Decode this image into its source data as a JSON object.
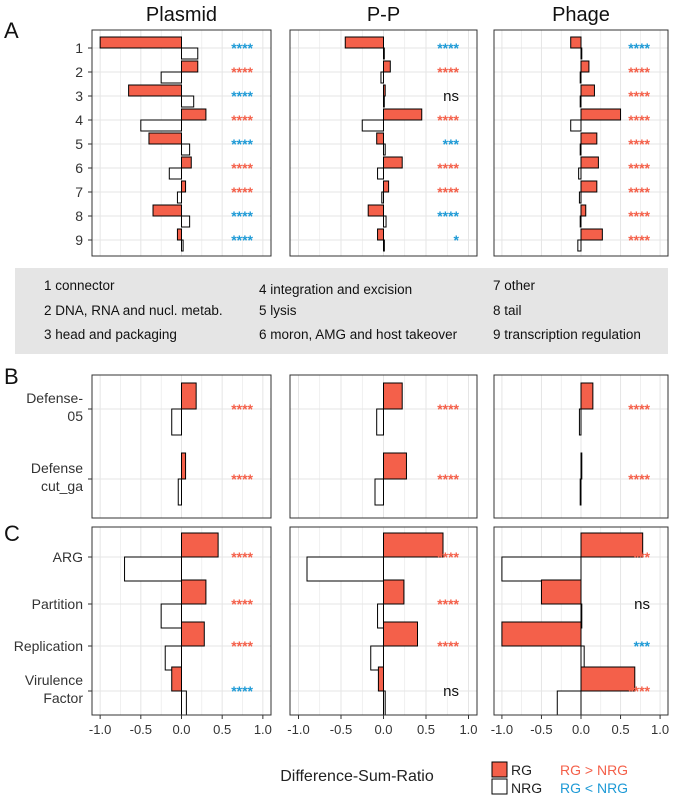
{
  "figure": {
    "column_titles": [
      "Plasmid",
      "P-P",
      "Phage"
    ],
    "panel_letters": [
      "A",
      "B",
      "C"
    ],
    "x_axis_label": "Difference-Sum-Ratio",
    "x_ticks": [
      "-1.0",
      "-0.5",
      "0.0",
      "0.5",
      "1.0"
    ],
    "legend": {
      "rg_label": "RG",
      "nrg_label": "NRG",
      "rg_gt_nrg": "RG > NRG",
      "rg_lt_nrg": "RG < NRG"
    },
    "category_legend": [
      "1 connector",
      "2 DNA, RNA and nucl. metab.",
      "3 head and packaging",
      "4 integration and excision",
      "5 lysis",
      "6 moron, AMG and host takeover",
      "7 other",
      "8 tail",
      "9 transcription regulation"
    ],
    "colors": {
      "rg_fill": "#F4604A",
      "nrg_fill": "#FFFFFF",
      "up_star": "#F4604A",
      "down_star": "#1E9AD6",
      "grid": "#E5E5E5",
      "legend_box": "#E5E5E5"
    }
  },
  "chart_data": [
    {
      "panel": "A",
      "type": "bar",
      "orientation": "horizontal",
      "categories": [
        "1",
        "2",
        "3",
        "4",
        "5",
        "6",
        "7",
        "8",
        "9"
      ],
      "xlim": [
        -1.1,
        1.1
      ],
      "columns": [
        {
          "name": "Plasmid",
          "series": [
            {
              "name": "RG",
              "values": [
                -1.0,
                0.2,
                -0.65,
                0.3,
                -0.4,
                0.12,
                0.05,
                -0.35,
                -0.05
              ]
            },
            {
              "name": "NRG",
              "values": [
                0.2,
                -0.25,
                0.15,
                -0.5,
                0.1,
                -0.15,
                -0.05,
                0.1,
                0.02
              ]
            }
          ],
          "significance": [
            "****",
            "****",
            "****",
            "****",
            "****",
            "****",
            "****",
            "****",
            "****"
          ],
          "direction": [
            "down",
            "up",
            "down",
            "up",
            "down",
            "up",
            "up",
            "down",
            "down"
          ]
        },
        {
          "name": "P-P",
          "series": [
            {
              "name": "RG",
              "values": [
                -0.45,
                0.08,
                0.02,
                0.45,
                -0.08,
                0.22,
                0.06,
                -0.18,
                -0.07
              ]
            },
            {
              "name": "NRG",
              "values": [
                0.0,
                -0.03,
                0.0,
                -0.25,
                0.02,
                -0.07,
                -0.02,
                0.03,
                0.01
              ]
            }
          ],
          "significance": [
            "****",
            "****",
            "ns",
            "****",
            "***",
            "****",
            "****",
            "****",
            "*"
          ],
          "direction": [
            "down",
            "up",
            "ns",
            "up",
            "down",
            "up",
            "up",
            "down",
            "down"
          ]
        },
        {
          "name": "Phage",
          "series": [
            {
              "name": "RG",
              "values": [
                -0.13,
                0.1,
                0.17,
                0.5,
                0.2,
                0.22,
                0.2,
                0.06,
                0.27
              ]
            },
            {
              "name": "NRG",
              "values": [
                0.01,
                -0.01,
                -0.01,
                -0.13,
                -0.01,
                -0.03,
                -0.02,
                -0.01,
                -0.04
              ]
            }
          ],
          "significance": [
            "****",
            "****",
            "****",
            "****",
            "****",
            "****",
            "****",
            "****",
            "****"
          ],
          "direction": [
            "down",
            "up",
            "up",
            "up",
            "up",
            "up",
            "up",
            "up",
            "up"
          ]
        }
      ]
    },
    {
      "panel": "B",
      "type": "bar",
      "orientation": "horizontal",
      "categories": [
        "Defense-\n05",
        "Defense\ncut_ga"
      ],
      "xlim": [
        -1.1,
        1.1
      ],
      "columns": [
        {
          "name": "Plasmid",
          "series": [
            {
              "name": "RG",
              "values": [
                0.18,
                0.05
              ]
            },
            {
              "name": "NRG",
              "values": [
                -0.12,
                -0.04
              ]
            }
          ],
          "significance": [
            "****",
            "****"
          ],
          "direction": [
            "up",
            "up"
          ]
        },
        {
          "name": "P-P",
          "series": [
            {
              "name": "RG",
              "values": [
                0.22,
                0.27
              ]
            },
            {
              "name": "NRG",
              "values": [
                -0.08,
                -0.1
              ]
            }
          ],
          "significance": [
            "****",
            "****"
          ],
          "direction": [
            "up",
            "up"
          ]
        },
        {
          "name": "Phage",
          "series": [
            {
              "name": "RG",
              "values": [
                0.15,
                0.01
              ]
            },
            {
              "name": "NRG",
              "values": [
                -0.02,
                -0.01
              ]
            }
          ],
          "significance": [
            "****",
            "****"
          ],
          "direction": [
            "up",
            "up"
          ]
        }
      ]
    },
    {
      "panel": "C",
      "type": "bar",
      "orientation": "horizontal",
      "categories": [
        "ARG",
        "Partition",
        "Replication",
        "Virulence\nFactor"
      ],
      "xlim": [
        -1.1,
        1.1
      ],
      "columns": [
        {
          "name": "Plasmid",
          "series": [
            {
              "name": "RG",
              "values": [
                0.45,
                0.3,
                0.28,
                -0.12
              ]
            },
            {
              "name": "NRG",
              "values": [
                -0.7,
                -0.25,
                -0.2,
                0.06
              ]
            }
          ],
          "significance": [
            "****",
            "****",
            "****",
            "****"
          ],
          "direction": [
            "up",
            "up",
            "up",
            "down"
          ]
        },
        {
          "name": "P-P",
          "series": [
            {
              "name": "RG",
              "values": [
                0.7,
                0.24,
                0.4,
                -0.06
              ]
            },
            {
              "name": "NRG",
              "values": [
                -0.9,
                -0.07,
                -0.15,
                0.02
              ]
            }
          ],
          "significance": [
            "****",
            "****",
            "****",
            "ns"
          ],
          "direction": [
            "up",
            "up",
            "up",
            "ns"
          ]
        },
        {
          "name": "Phage",
          "series": [
            {
              "name": "RG",
              "values": [
                0.78,
                -0.5,
                -1.0,
                0.68
              ]
            },
            {
              "name": "NRG",
              "values": [
                -1.0,
                0.0,
                0.04,
                -0.3
              ]
            }
          ],
          "significance": [
            "***",
            "ns",
            "***",
            "****"
          ],
          "direction": [
            "up",
            "ns",
            "down",
            "up"
          ]
        }
      ]
    }
  ]
}
